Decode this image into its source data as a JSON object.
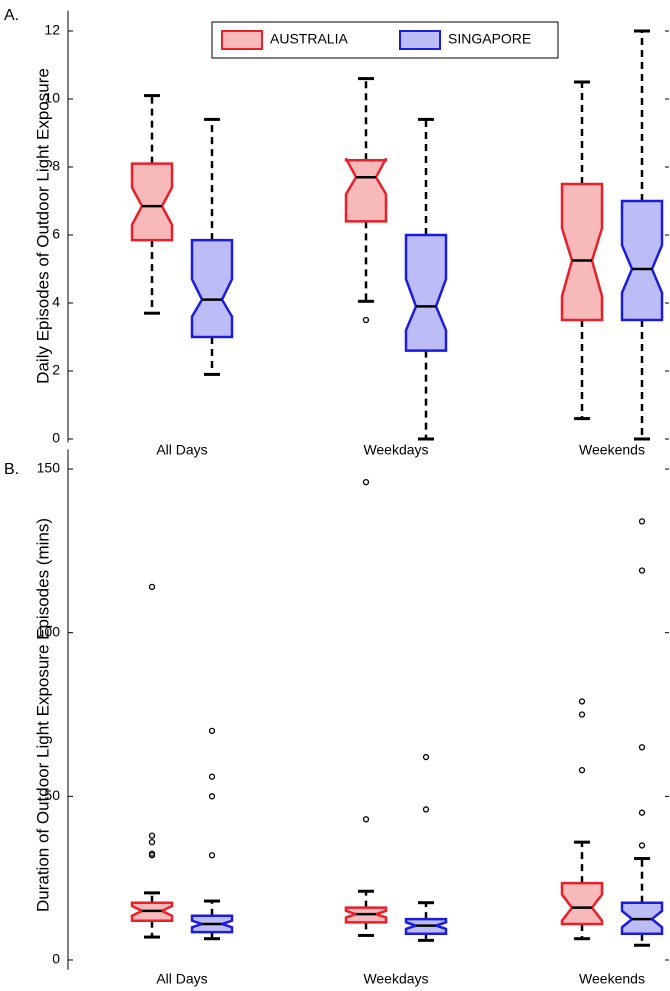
{
  "chart_data": [
    {
      "type": "boxplot",
      "panel_label": "A.",
      "ylabel": "Daily Episodes of Outdoor Light Exposure",
      "categories": [
        "All Days",
        "Weekdays",
        "Weekends"
      ],
      "ylim": [
        -0.1,
        12.6
      ],
      "yticks": [
        0,
        2,
        4,
        6,
        8,
        10,
        12
      ],
      "legend": "upper center",
      "series": [
        {
          "name": "AUSTRALIA",
          "color": "#e8202a",
          "fill": "#f7b9b9",
          "boxes": [
            {
              "low": 3.7,
              "q1": 5.85,
              "notch_low": 6.3,
              "median": 6.85,
              "notch_high": 7.4,
              "q3": 8.1,
              "high": 10.1,
              "outliers": []
            },
            {
              "low": 4.05,
              "q1": 6.4,
              "notch_low": 7.2,
              "median": 7.7,
              "notch_high": 8.25,
              "q3": 8.2,
              "high": 10.6,
              "outliers": [
                3.5
              ]
            },
            {
              "low": 0.6,
              "q1": 3.5,
              "notch_low": 4.2,
              "median": 5.25,
              "notch_high": 6.2,
              "q3": 7.5,
              "high": 10.5,
              "outliers": []
            }
          ]
        },
        {
          "name": "SINGAPORE",
          "color": "#1c1ce0",
          "fill": "#bcbcf7",
          "boxes": [
            {
              "low": 1.9,
              "q1": 3.0,
              "notch_low": 3.6,
              "median": 4.1,
              "notch_high": 4.7,
              "q3": 5.85,
              "high": 9.4,
              "outliers": []
            },
            {
              "low": 0,
              "q1": 2.6,
              "notch_low": 3.2,
              "median": 3.9,
              "notch_high": 4.7,
              "q3": 6.0,
              "high": 9.4,
              "outliers": []
            },
            {
              "low": 0,
              "q1": 3.5,
              "notch_low": 4.3,
              "median": 5.0,
              "notch_high": 5.7,
              "q3": 7.0,
              "high": 12,
              "outliers": []
            }
          ]
        }
      ]
    },
    {
      "type": "boxplot",
      "panel_label": "B.",
      "ylabel": "Duration of Outdoor Light Exposure Episodes (mins)",
      "categories": [
        "All Days",
        "Weekdays",
        "Weekends"
      ],
      "ylim": [
        -3,
        156
      ],
      "yticks": [
        0,
        50,
        100,
        150
      ],
      "series": [
        {
          "color": "#e8202a",
          "fill": "#f7b9b9",
          "boxes": [
            {
              "low": 7,
              "q1": 12,
              "notch_low": 13.5,
              "median": 15,
              "notch_high": 16.5,
              "q3": 17.5,
              "high": 20.5,
              "outliers": [
                114,
                38,
                36,
                32.5,
                32
              ]
            },
            {
              "low": 7.5,
              "q1": 11.5,
              "notch_low": 13,
              "median": 14,
              "notch_high": 15,
              "q3": 16,
              "high": 21,
              "outliers": [
                146,
                43
              ]
            },
            {
              "low": 6.5,
              "q1": 11,
              "notch_low": 12,
              "median": 16,
              "notch_high": 20,
              "q3": 23.5,
              "high": 36,
              "outliers": [
                79,
                75,
                58
              ]
            }
          ]
        },
        {
          "color": "#1c1ce0",
          "fill": "#bcbcf7",
          "boxes": [
            {
              "low": 6.5,
              "q1": 8.5,
              "notch_low": 10,
              "median": 11,
              "notch_high": 12,
              "q3": 13.5,
              "high": 18,
              "outliers": [
                70,
                56,
                50,
                32
              ]
            },
            {
              "low": 6,
              "q1": 8,
              "notch_low": 9.5,
              "median": 10.5,
              "notch_high": 11.5,
              "q3": 12.5,
              "high": 17.5,
              "outliers": [
                62,
                46
              ]
            },
            {
              "low": 4.5,
              "q1": 8,
              "notch_low": 10,
              "median": 12.5,
              "notch_high": 15,
              "q3": 17.5,
              "high": 31,
              "outliers": [
                134,
                119,
                65,
                45,
                35
              ]
            }
          ]
        }
      ]
    }
  ]
}
